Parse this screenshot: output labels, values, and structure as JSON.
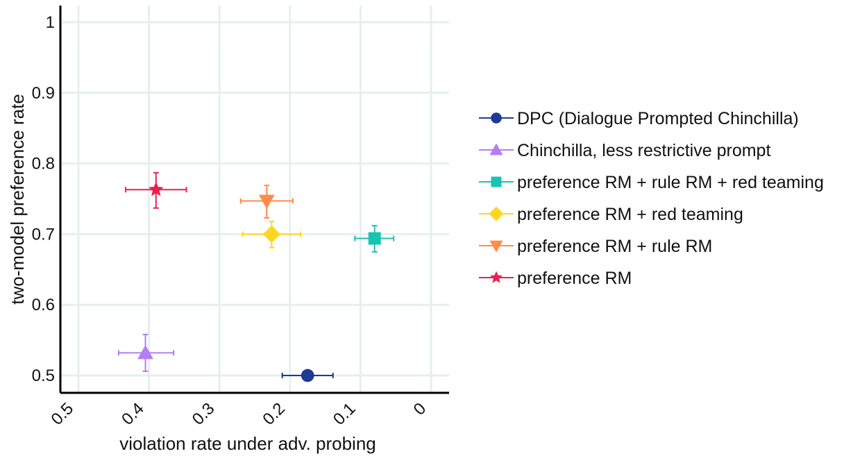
{
  "chart_data": {
    "type": "scatter",
    "title": "",
    "xlabel": "violation rate under adv. probing",
    "ylabel": "two-model preference rate",
    "xlim": [
      0.5,
      0
    ],
    "ylim": [
      0.475,
      1.025
    ],
    "x_reversed": true,
    "grid": true,
    "legend_placement": "right",
    "x_ticks": [
      "0.5",
      "0.4",
      "0.3",
      "0.2",
      "0.1",
      "0"
    ],
    "y_ticks": [
      "0.5",
      "0.6",
      "0.7",
      "0.8",
      "0.9",
      "1"
    ],
    "series": [
      {
        "name": "DPC (Dialogue Prompted Chinchilla)",
        "marker": "circle",
        "color": "#1f3a93",
        "x": 0.175,
        "y": 0.5,
        "x_error": [
          0.211,
          0.139
        ],
        "y_error": null
      },
      {
        "name": "Chinchilla, less restrictive prompt",
        "marker": "triangle-up",
        "color": "#b57cf4",
        "x": 0.405,
        "y": 0.532,
        "x_error": [
          0.443,
          0.365
        ],
        "y_error": [
          0.506,
          0.558
        ]
      },
      {
        "name": "preference RM + rule RM + red teaming",
        "marker": "square",
        "color": "#19c3b2",
        "x": 0.08,
        "y": 0.694,
        "x_error": [
          0.108,
          0.053
        ],
        "y_error": [
          0.675,
          0.712
        ]
      },
      {
        "name": "preference RM + red teaming",
        "marker": "diamond",
        "color": "#ffd61f",
        "x": 0.226,
        "y": 0.7,
        "x_error": [
          0.267,
          0.185
        ],
        "y_error": [
          0.681,
          0.718
        ]
      },
      {
        "name": "preference RM + rule RM",
        "marker": "triangle-down",
        "color": "#ff8c4a",
        "x": 0.233,
        "y": 0.747,
        "x_error": [
          0.27,
          0.196
        ],
        "y_error": [
          0.723,
          0.769
        ]
      },
      {
        "name": "preference RM",
        "marker": "star",
        "color": "#e8214d",
        "x": 0.39,
        "y": 0.763,
        "x_error": [
          0.433,
          0.347
        ],
        "y_error": [
          0.737,
          0.787
        ]
      }
    ]
  }
}
